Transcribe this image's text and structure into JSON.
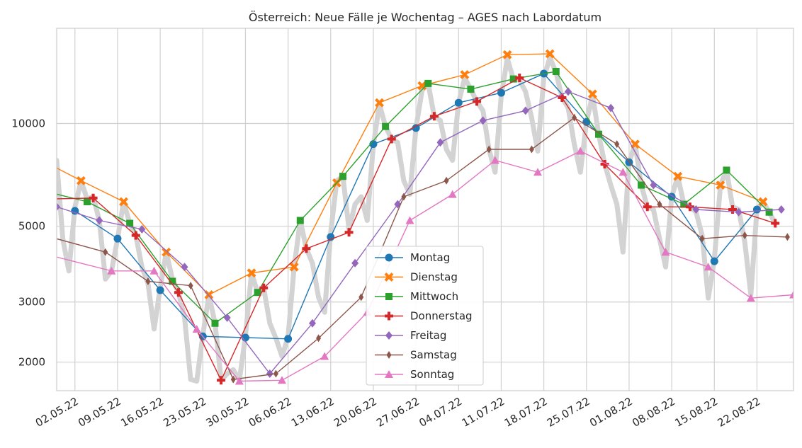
{
  "chart_data": {
    "type": "line",
    "title": "Österreich: Neue Fälle je Wochentag – AGES nach Labordatum",
    "xlabel": "",
    "ylabel": "",
    "y_scale": "log",
    "ylim": [
      1650,
      19000
    ],
    "xlim": [
      "2022-04-29",
      "2022-08-28"
    ],
    "yticks": [
      2000,
      3000,
      5000,
      10000
    ],
    "xticks": [
      "02.05.22",
      "09.05.22",
      "16.05.22",
      "23.05.22",
      "30.05.22",
      "06.06.22",
      "13.06.22",
      "20.06.22",
      "27.06.22",
      "04.07.22",
      "11.07.22",
      "18.07.22",
      "25.07.22",
      "01.08.22",
      "08.08.22",
      "15.08.22",
      "22.08.22"
    ],
    "grid": true,
    "legend_position": "lower center",
    "background_series": {
      "color": "#d3d3d3",
      "note": "daily values",
      "values": [
        [
          "2022-04-29",
          7800
        ],
        [
          "2022-04-30",
          4600
        ],
        [
          "2022-05-01",
          3700
        ],
        [
          "2022-05-02",
          5700
        ],
        [
          "2022-05-03",
          6800
        ],
        [
          "2022-05-04",
          6000
        ],
        [
          "2022-05-05",
          6100
        ],
        [
          "2022-05-06",
          5200
        ],
        [
          "2022-05-07",
          3500
        ],
        [
          "2022-05-08",
          3700
        ],
        [
          "2022-05-09",
          4600
        ],
        [
          "2022-05-10",
          5900
        ],
        [
          "2022-05-11",
          5100
        ],
        [
          "2022-05-12",
          4700
        ],
        [
          "2022-05-13",
          3800
        ],
        [
          "2022-05-14",
          3400
        ],
        [
          "2022-05-15",
          2500
        ],
        [
          "2022-05-16",
          3300
        ],
        [
          "2022-05-17",
          4200
        ],
        [
          "2022-05-18",
          3500
        ],
        [
          "2022-05-19",
          3200
        ],
        [
          "2022-05-20",
          2700
        ],
        [
          "2022-05-21",
          1780
        ],
        [
          "2022-05-22",
          1760
        ],
        [
          "2022-05-23",
          2400
        ],
        [
          "2022-05-24",
          3150
        ],
        [
          "2022-05-25",
          2600
        ],
        [
          "2022-05-26",
          1770
        ],
        [
          "2022-05-27",
          1850
        ],
        [
          "2022-05-28",
          1900
        ],
        [
          "2022-05-29",
          1770
        ],
        [
          "2022-05-30",
          2380
        ],
        [
          "2022-05-31",
          3650
        ],
        [
          "2022-06-01",
          3200
        ],
        [
          "2022-06-02",
          3300
        ],
        [
          "2022-06-03",
          2600
        ],
        [
          "2022-06-04",
          2350
        ],
        [
          "2022-06-05",
          2080
        ],
        [
          "2022-06-06",
          2370
        ],
        [
          "2022-06-07",
          3800
        ],
        [
          "2022-06-08",
          5200
        ],
        [
          "2022-06-09",
          4300
        ],
        [
          "2022-06-10",
          3900
        ],
        [
          "2022-06-11",
          3100
        ],
        [
          "2022-06-12",
          2800
        ],
        [
          "2022-06-13",
          4800
        ],
        [
          "2022-06-14",
          6800
        ],
        [
          "2022-06-15",
          7000
        ],
        [
          "2022-06-16",
          4900
        ],
        [
          "2022-06-17",
          5800
        ],
        [
          "2022-06-18",
          6100
        ],
        [
          "2022-06-19",
          5200
        ],
        [
          "2022-06-20",
          8600
        ],
        [
          "2022-06-21",
          11400
        ],
        [
          "2022-06-22",
          9800
        ],
        [
          "2022-06-23",
          9000
        ],
        [
          "2022-06-24",
          8800
        ],
        [
          "2022-06-25",
          6800
        ],
        [
          "2022-06-26",
          6200
        ],
        [
          "2022-06-27",
          9700
        ],
        [
          "2022-06-28",
          12500
        ],
        [
          "2022-06-29",
          13100
        ],
        [
          "2022-06-30",
          10500
        ],
        [
          "2022-07-01",
          10200
        ],
        [
          "2022-07-02",
          8400
        ],
        [
          "2022-07-03",
          7800
        ],
        [
          "2022-07-04",
          11500
        ],
        [
          "2022-07-05",
          13600
        ],
        [
          "2022-07-06",
          12600
        ],
        [
          "2022-07-07",
          11600
        ],
        [
          "2022-07-08",
          10900
        ],
        [
          "2022-07-09",
          8400
        ],
        [
          "2022-07-10",
          7200
        ],
        [
          "2022-07-11",
          12000
        ],
        [
          "2022-07-12",
          15500
        ],
        [
          "2022-07-13",
          13500
        ],
        [
          "2022-07-14",
          13400
        ],
        [
          "2022-07-15",
          12400
        ],
        [
          "2022-07-16",
          10400
        ],
        [
          "2022-07-17",
          8300
        ],
        [
          "2022-07-18",
          13600
        ],
        [
          "2022-07-19",
          15600
        ],
        [
          "2022-07-20",
          14100
        ],
        [
          "2022-07-21",
          11900
        ],
        [
          "2022-07-22",
          11100
        ],
        [
          "2022-07-23",
          8700
        ],
        [
          "2022-07-24",
          7200
        ],
        [
          "2022-07-25",
          10100
        ],
        [
          "2022-07-26",
          12100
        ],
        [
          "2022-07-27",
          9300
        ],
        [
          "2022-07-28",
          7600
        ],
        [
          "2022-07-29",
          6600
        ],
        [
          "2022-07-30",
          5800
        ],
        [
          "2022-07-31",
          4200
        ],
        [
          "2022-08-01",
          7700
        ],
        [
          "2022-08-02",
          8700
        ],
        [
          "2022-08-03",
          6600
        ],
        [
          "2022-08-04",
          5700
        ],
        [
          "2022-08-05",
          5600
        ],
        [
          "2022-08-06",
          4600
        ],
        [
          "2022-08-07",
          3800
        ],
        [
          "2022-08-08",
          6100
        ],
        [
          "2022-08-09",
          7000
        ],
        [
          "2022-08-10",
          5800
        ],
        [
          "2022-08-11",
          5700
        ],
        [
          "2022-08-12",
          5500
        ],
        [
          "2022-08-13",
          4700
        ],
        [
          "2022-08-14",
          3080
        ],
        [
          "2022-08-15",
          4000
        ],
        [
          "2022-08-16",
          6600
        ],
        [
          "2022-08-17",
          7300
        ],
        [
          "2022-08-18",
          5700
        ],
        [
          "2022-08-19",
          5600
        ],
        [
          "2022-08-20",
          4500
        ],
        [
          "2022-08-21",
          3150
        ],
        [
          "2022-08-22",
          5600
        ],
        [
          "2022-08-23",
          5900
        ],
        [
          "2022-08-24",
          5500
        ],
        [
          "2022-08-25",
          5100
        ]
      ]
    },
    "series": [
      {
        "name": "Montag",
        "color": "#1f77b4",
        "marker": "circle",
        "points": [
          [
            "2022-05-02",
            5550
          ],
          [
            "2022-05-09",
            4600
          ],
          [
            "2022-05-16",
            3250
          ],
          [
            "2022-05-23",
            2380
          ],
          [
            "2022-05-30",
            2360
          ],
          [
            "2022-06-06",
            2340
          ],
          [
            "2022-06-13",
            4650
          ],
          [
            "2022-06-20",
            8700
          ],
          [
            "2022-06-27",
            9700
          ],
          [
            "2022-07-04",
            11500
          ],
          [
            "2022-07-11",
            12300
          ],
          [
            "2022-07-18",
            14000
          ],
          [
            "2022-07-25",
            10100
          ],
          [
            "2022-08-01",
            7700
          ],
          [
            "2022-08-08",
            6100
          ],
          [
            "2022-08-15",
            3950
          ],
          [
            "2022-08-22",
            5600
          ]
        ]
      },
      {
        "name": "Dienstag",
        "color": "#ff7f0e",
        "marker": "x",
        "points": [
          [
            "2022-04-26",
            7900
          ],
          [
            "2022-05-03",
            6800
          ],
          [
            "2022-05-10",
            5900
          ],
          [
            "2022-05-17",
            4200
          ],
          [
            "2022-05-24",
            3150
          ],
          [
            "2022-05-31",
            3650
          ],
          [
            "2022-06-07",
            3800
          ],
          [
            "2022-06-14",
            6700
          ],
          [
            "2022-06-21",
            11500
          ],
          [
            "2022-06-28",
            12900
          ],
          [
            "2022-07-05",
            13900
          ],
          [
            "2022-07-12",
            15900
          ],
          [
            "2022-07-19",
            16000
          ],
          [
            "2022-07-26",
            12200
          ],
          [
            "2022-08-02",
            8700
          ],
          [
            "2022-08-09",
            7000
          ],
          [
            "2022-08-16",
            6600
          ],
          [
            "2022-08-23",
            5900
          ]
        ]
      },
      {
        "name": "Mittwoch",
        "color": "#2ca02c",
        "marker": "square",
        "points": [
          [
            "2022-04-26",
            6400
          ],
          [
            "2022-05-04",
            5900
          ],
          [
            "2022-05-11",
            5100
          ],
          [
            "2022-05-18",
            3450
          ],
          [
            "2022-05-25",
            2600
          ],
          [
            "2022-06-01",
            3200
          ],
          [
            "2022-06-08",
            5200
          ],
          [
            "2022-06-15",
            7000
          ],
          [
            "2022-06-22",
            9800
          ],
          [
            "2022-06-29",
            13100
          ],
          [
            "2022-07-06",
            12600
          ],
          [
            "2022-07-13",
            13500
          ],
          [
            "2022-07-20",
            14200
          ],
          [
            "2022-07-27",
            9300
          ],
          [
            "2022-08-03",
            6600
          ],
          [
            "2022-08-10",
            5800
          ],
          [
            "2022-08-17",
            7300
          ],
          [
            "2022-08-24",
            5500
          ]
        ]
      },
      {
        "name": "Donnerstag",
        "color": "#d62728",
        "marker": "plus",
        "points": [
          [
            "2022-04-26",
            6000
          ],
          [
            "2022-05-05",
            6050
          ],
          [
            "2022-05-12",
            4700
          ],
          [
            "2022-05-19",
            3200
          ],
          [
            "2022-05-26",
            1770
          ],
          [
            "2022-06-02",
            3300
          ],
          [
            "2022-06-09",
            4300
          ],
          [
            "2022-06-16",
            4800
          ],
          [
            "2022-06-23",
            9000
          ],
          [
            "2022-06-30",
            10500
          ],
          [
            "2022-07-07",
            11600
          ],
          [
            "2022-07-14",
            13600
          ],
          [
            "2022-07-21",
            11900
          ],
          [
            "2022-07-28",
            7600
          ],
          [
            "2022-08-04",
            5700
          ],
          [
            "2022-08-11",
            5700
          ],
          [
            "2022-08-18",
            5600
          ],
          [
            "2022-08-25",
            5100
          ]
        ]
      },
      {
        "name": "Freitag",
        "color": "#9467bd",
        "marker": "diamond",
        "points": [
          [
            "2022-04-29",
            5700
          ],
          [
            "2022-05-06",
            5200
          ],
          [
            "2022-05-13",
            4900
          ],
          [
            "2022-05-20",
            3800
          ],
          [
            "2022-05-27",
            2700
          ],
          [
            "2022-06-03",
            1850
          ],
          [
            "2022-06-10",
            2600
          ],
          [
            "2022-06-17",
            3900
          ],
          [
            "2022-06-24",
            5800
          ],
          [
            "2022-07-01",
            8800
          ],
          [
            "2022-07-08",
            10200
          ],
          [
            "2022-07-15",
            10900
          ],
          [
            "2022-07-22",
            12400
          ],
          [
            "2022-07-29",
            11100
          ],
          [
            "2022-08-05",
            6600
          ],
          [
            "2022-08-12",
            5600
          ],
          [
            "2022-08-19",
            5500
          ],
          [
            "2022-08-26",
            5600
          ]
        ]
      },
      {
        "name": "Samstag",
        "color": "#8c564b",
        "marker": "thin_diamond",
        "points": [
          [
            "2022-04-27",
            4700
          ],
          [
            "2022-05-07",
            4200
          ],
          [
            "2022-05-14",
            3450
          ],
          [
            "2022-05-21",
            3350
          ],
          [
            "2022-05-28",
            1780
          ],
          [
            "2022-06-04",
            1850
          ],
          [
            "2022-06-11",
            2350
          ],
          [
            "2022-06-18",
            3100
          ],
          [
            "2022-06-25",
            6100
          ],
          [
            "2022-07-02",
            6800
          ],
          [
            "2022-07-09",
            8400
          ],
          [
            "2022-07-16",
            8400
          ],
          [
            "2022-07-23",
            10400
          ],
          [
            "2022-07-30",
            8700
          ],
          [
            "2022-08-06",
            5800
          ],
          [
            "2022-08-13",
            4600
          ],
          [
            "2022-08-20",
            4700
          ],
          [
            "2022-08-27",
            4650
          ]
        ]
      },
      {
        "name": "Sonntag",
        "color": "#e377c2",
        "marker": "triangle",
        "points": [
          [
            "2022-04-27",
            4150
          ],
          [
            "2022-05-08",
            3700
          ],
          [
            "2022-05-15",
            3700
          ],
          [
            "2022-05-22",
            2500
          ],
          [
            "2022-05-29",
            1760
          ],
          [
            "2022-06-05",
            1770
          ],
          [
            "2022-06-12",
            2080
          ],
          [
            "2022-06-19",
            2800
          ],
          [
            "2022-06-26",
            5200
          ],
          [
            "2022-07-03",
            6200
          ],
          [
            "2022-07-10",
            7800
          ],
          [
            "2022-07-17",
            7200
          ],
          [
            "2022-07-24",
            8300
          ],
          [
            "2022-07-31",
            7200
          ],
          [
            "2022-08-07",
            4200
          ],
          [
            "2022-08-14",
            3800
          ],
          [
            "2022-08-21",
            3080
          ],
          [
            "2022-08-28",
            3150
          ]
        ]
      }
    ]
  }
}
